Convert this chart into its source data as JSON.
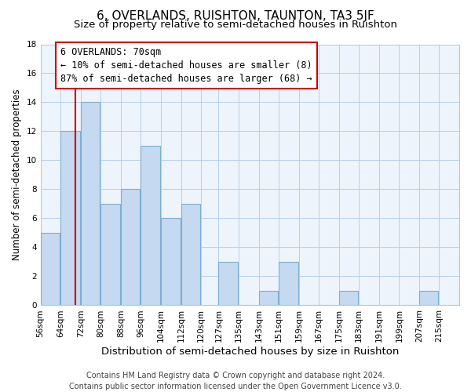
{
  "title": "6, OVERLANDS, RUISHTON, TAUNTON, TA3 5JF",
  "subtitle": "Size of property relative to semi-detached houses in Ruishton",
  "xlabel": "Distribution of semi-detached houses by size in Ruishton",
  "ylabel": "Number of semi-detached properties",
  "bins": [
    "56sqm",
    "64sqm",
    "72sqm",
    "80sqm",
    "88sqm",
    "96sqm",
    "104sqm",
    "112sqm",
    "120sqm",
    "127sqm",
    "135sqm",
    "143sqm",
    "151sqm",
    "159sqm",
    "167sqm",
    "175sqm",
    "183sqm",
    "191sqm",
    "199sqm",
    "207sqm",
    "215sqm"
  ],
  "values": [
    5,
    12,
    14,
    7,
    8,
    11,
    6,
    7,
    0,
    3,
    0,
    1,
    3,
    0,
    0,
    1,
    0,
    0,
    0,
    1,
    0
  ],
  "bin_edges": [
    56,
    64,
    72,
    80,
    88,
    96,
    104,
    112,
    120,
    127,
    135,
    143,
    151,
    159,
    167,
    175,
    183,
    191,
    199,
    207,
    215
  ],
  "bar_color": "#c5d9f0",
  "bar_edge_color": "#7bafd4",
  "plot_bg_color": "#eef4fb",
  "property_line_x": 70,
  "property_line_color": "#cc0000",
  "annotation_line1": "6 OVERLANDS: 70sqm",
  "annotation_line2": "← 10% of semi-detached houses are smaller (8)",
  "annotation_line3": "87% of semi-detached houses are larger (68) →",
  "ylim": [
    0,
    18
  ],
  "yticks": [
    0,
    2,
    4,
    6,
    8,
    10,
    12,
    14,
    16,
    18
  ],
  "footer_line1": "Contains HM Land Registry data © Crown copyright and database right 2024.",
  "footer_line2": "Contains public sector information licensed under the Open Government Licence v3.0.",
  "title_fontsize": 11,
  "subtitle_fontsize": 9.5,
  "xlabel_fontsize": 9.5,
  "ylabel_fontsize": 8.5,
  "tick_fontsize": 7.5,
  "annotation_fontsize": 8.5,
  "footer_fontsize": 7
}
